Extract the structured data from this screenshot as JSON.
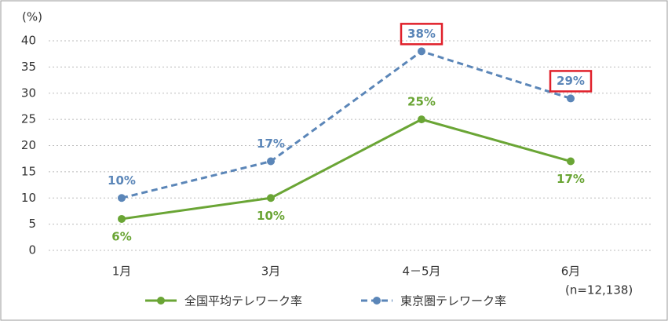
{
  "chart_data": {
    "type": "line",
    "y_unit_label": "(%)",
    "note": "(n=12,138)",
    "categories": [
      "1月",
      "3月",
      "4－5月",
      "6月"
    ],
    "ylim": [
      0,
      40
    ],
    "yticks": [
      0,
      5,
      10,
      15,
      20,
      25,
      30,
      35,
      40
    ],
    "grid": true,
    "series": [
      {
        "name": "全国平均テレワーク率",
        "color": "#6aa535",
        "dash": false,
        "values": [
          6,
          10,
          25,
          17
        ],
        "value_labels": [
          "6%",
          "10%",
          "25%",
          "17%"
        ]
      },
      {
        "name": "東京圏テレワーク率",
        "color": "#5b86b8",
        "dash": true,
        "values": [
          10,
          17,
          38,
          29
        ],
        "value_labels": [
          "10%",
          "17%",
          "38%",
          "29%"
        ],
        "highlighted": [
          2,
          3
        ],
        "highlight_color": "#e0202a"
      }
    ]
  }
}
